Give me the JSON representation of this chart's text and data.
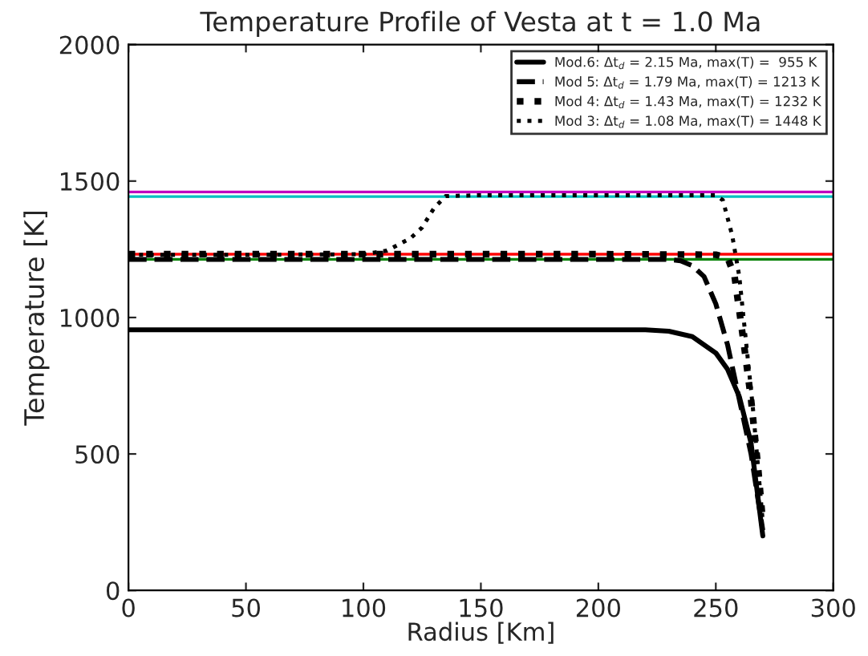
{
  "chart_data": {
    "type": "line",
    "title": "Temperature Profile of Vesta at t = 1.0 Ma",
    "xlabel": "Radius [Km]",
    "ylabel": "Temperature [K]",
    "xlim": [
      0,
      300
    ],
    "xticks": [
      0,
      50,
      100,
      150,
      200,
      250,
      300
    ],
    "ylim": [
      0,
      2000
    ],
    "yticks": [
      0,
      500,
      1000,
      1500,
      2000
    ],
    "grid": false,
    "legend": "top right",
    "marker": "none",
    "series": [
      {
        "name": "Mod.6: Δt$_{d}$ = 2.15 Ma, max(T) =  955 K",
        "color": "#000000",
        "line_style": "solid",
        "x": [
          0,
          50,
          100,
          150,
          200,
          220,
          230,
          240,
          250,
          255,
          260,
          265,
          270
        ],
        "values": [
          955,
          955,
          955,
          955,
          955,
          955,
          950,
          930,
          870,
          810,
          710,
          540,
          200
        ]
      },
      {
        "name": "Mod 5: Δt$_{d}$ = 1.79 Ma, max(T) = 1213 K",
        "color": "#000000",
        "line_style": "dashed",
        "x": [
          0,
          50,
          100,
          150,
          200,
          230,
          235,
          240,
          245,
          250,
          255,
          260,
          265,
          270
        ],
        "values": [
          1213,
          1213,
          1213,
          1213,
          1213,
          1213,
          1208,
          1190,
          1150,
          1050,
          900,
          700,
          500,
          220
        ]
      },
      {
        "name": "Mod 4: Δt$_{d}$ = 1.43 Ma, max(T) = 1232 K",
        "color": "#000000",
        "line_style": "dotted",
        "x": [
          0,
          50,
          100,
          150,
          200,
          250,
          255,
          258,
          262,
          265,
          268,
          270
        ],
        "values": [
          1232,
          1232,
          1232,
          1232,
          1232,
          1230,
          1220,
          1150,
          900,
          700,
          450,
          250
        ]
      },
      {
        "name": "Mod 3: Δt$_{d}$ = 1.08 Ma, max(T) = 1448 K",
        "color": "#000000",
        "line_style": "dotted",
        "x": [
          0,
          50,
          100,
          110,
          120,
          125,
          130,
          135,
          150,
          200,
          250,
          253,
          257,
          260,
          263,
          266,
          270
        ],
        "values": [
          1230,
          1230,
          1232,
          1245,
          1290,
          1330,
          1400,
          1445,
          1448,
          1448,
          1448,
          1430,
          1300,
          1150,
          900,
          650,
          250
        ]
      }
    ],
    "ref_lines": [
      {
        "axis": "y",
        "value": 1460,
        "color": "#bf00bf"
      },
      {
        "axis": "y",
        "value": 1443,
        "color": "#00bfbf"
      },
      {
        "axis": "y",
        "value": 1232,
        "color": "#ff0000"
      },
      {
        "axis": "y",
        "value": 1213,
        "color": "#008000"
      }
    ]
  }
}
